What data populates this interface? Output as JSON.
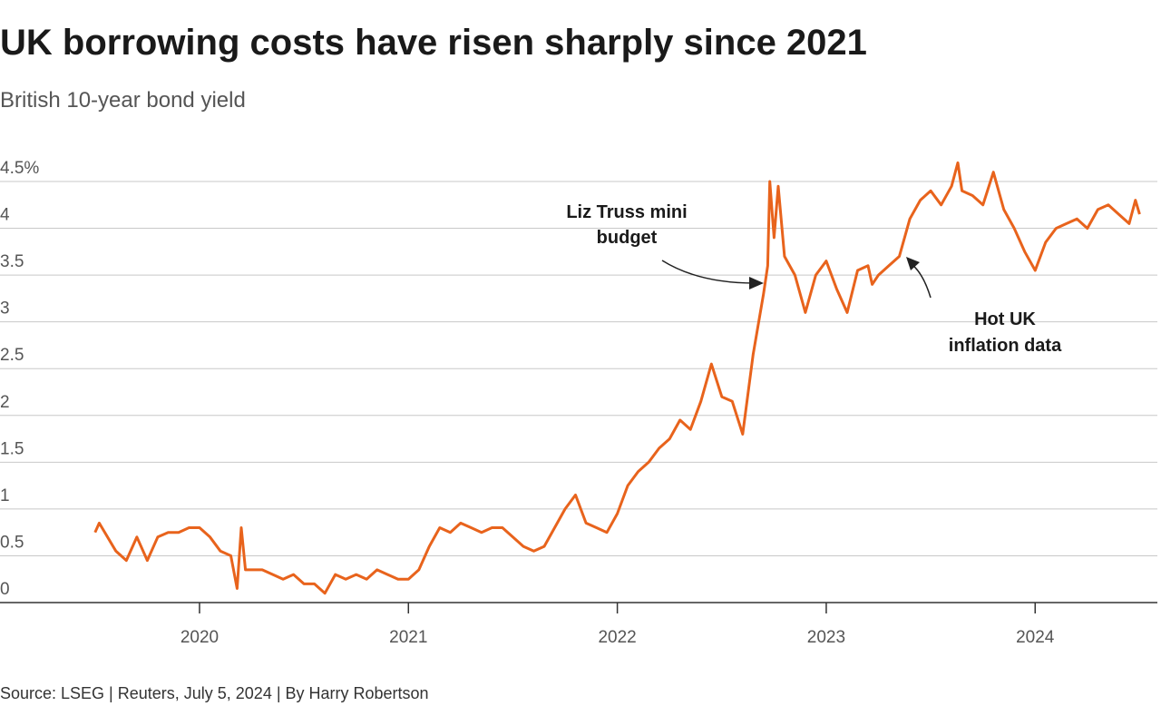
{
  "chart_data": {
    "type": "line",
    "title": "UK borrowing costs have risen sharply since 2021",
    "subtitle": "British 10-year bond yield",
    "source": "Source: LSEG | Reuters, July 5, 2024 | By Harry Robertson",
    "annotations": [
      {
        "lines": [
          "Liz Truss mini",
          "budget"
        ]
      },
      {
        "lines": [
          "Hot UK",
          "inflation data"
        ]
      }
    ],
    "xlim": [
      2019.045,
      2024.585
    ],
    "xticks": [
      2020,
      2021,
      2022,
      2023,
      2024
    ],
    "ylim": [
      0,
      4.5
    ],
    "yticks": [
      0,
      0.5,
      1,
      1.5,
      2,
      2.5,
      3,
      3.5,
      4,
      {
        "value": 4.5,
        "label": "4.5%"
      }
    ],
    "grid": true,
    "x": [
      2019.5,
      2019.52,
      2019.6,
      2019.65,
      2019.7,
      2019.75,
      2019.8,
      2019.85,
      2019.9,
      2019.95,
      2020.0,
      2020.05,
      2020.1,
      2020.15,
      2020.18,
      2020.2,
      2020.22,
      2020.3,
      2020.4,
      2020.45,
      2020.5,
      2020.55,
      2020.6,
      2020.65,
      2020.7,
      2020.75,
      2020.8,
      2020.85,
      2020.9,
      2020.95,
      2021.0,
      2021.05,
      2021.1,
      2021.15,
      2021.2,
      2021.25,
      2021.3,
      2021.35,
      2021.4,
      2021.45,
      2021.5,
      2021.55,
      2021.6,
      2021.65,
      2021.7,
      2021.75,
      2021.8,
      2021.85,
      2021.9,
      2021.95,
      2022.0,
      2022.05,
      2022.1,
      2022.15,
      2022.2,
      2022.25,
      2022.3,
      2022.35,
      2022.4,
      2022.45,
      2022.5,
      2022.55,
      2022.6,
      2022.65,
      2022.7,
      2022.72,
      2022.73,
      2022.75,
      2022.77,
      2022.8,
      2022.85,
      2022.9,
      2022.95,
      2023.0,
      2023.05,
      2023.1,
      2023.15,
      2023.2,
      2023.22,
      2023.25,
      2023.3,
      2023.35,
      2023.4,
      2023.45,
      2023.5,
      2023.55,
      2023.6,
      2023.63,
      2023.65,
      2023.7,
      2023.75,
      2023.8,
      2023.85,
      2023.9,
      2023.95,
      2024.0,
      2024.05,
      2024.1,
      2024.15,
      2024.2,
      2024.25,
      2024.3,
      2024.35,
      2024.4,
      2024.45,
      2024.48,
      2024.5
    ],
    "series": [
      {
        "color": "#e8631c",
        "values": [
          0.75,
          0.85,
          0.55,
          0.45,
          0.7,
          0.45,
          0.7,
          0.75,
          0.75,
          0.8,
          0.8,
          0.7,
          0.55,
          0.5,
          0.15,
          0.8,
          0.35,
          0.35,
          0.25,
          0.3,
          0.2,
          0.2,
          0.1,
          0.3,
          0.25,
          0.3,
          0.25,
          0.35,
          0.3,
          0.25,
          0.25,
          0.35,
          0.6,
          0.8,
          0.75,
          0.85,
          0.8,
          0.75,
          0.8,
          0.8,
          0.7,
          0.6,
          0.55,
          0.6,
          0.8,
          1.0,
          1.15,
          0.85,
          0.8,
          0.75,
          0.95,
          1.25,
          1.4,
          1.5,
          1.65,
          1.75,
          1.95,
          1.85,
          2.15,
          2.55,
          2.2,
          2.15,
          1.8,
          2.65,
          3.3,
          3.6,
          4.5,
          3.9,
          4.45,
          3.7,
          3.5,
          3.1,
          3.5,
          3.65,
          3.35,
          3.1,
          3.55,
          3.6,
          3.4,
          3.5,
          3.6,
          3.7,
          4.1,
          4.3,
          4.4,
          4.25,
          4.45,
          4.7,
          4.4,
          4.35,
          4.25,
          4.6,
          4.2,
          4.0,
          3.75,
          3.55,
          3.85,
          4.0,
          4.05,
          4.1,
          4.0,
          4.2,
          4.25,
          4.15,
          4.05,
          4.3,
          4.15
        ]
      }
    ]
  }
}
